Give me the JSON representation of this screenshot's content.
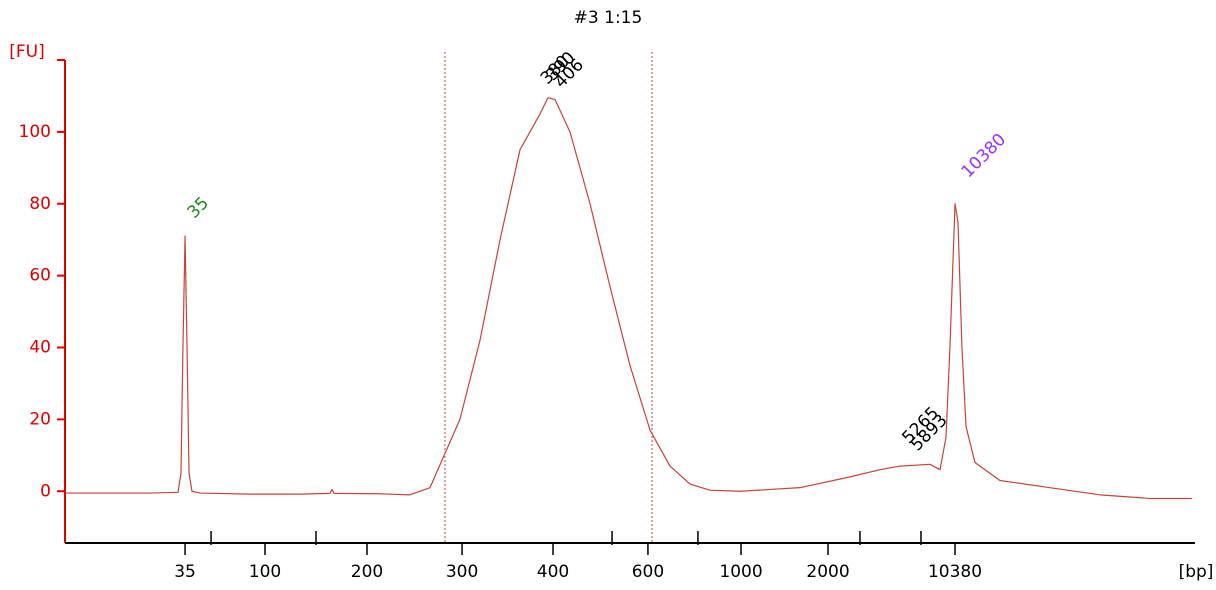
{
  "chart_data": {
    "type": "line",
    "title": "#3 1:15",
    "y_label": "[FU]",
    "x_label": "[bp]",
    "axis_color": "#dd0000",
    "ylim": [
      -14.4,
      120
    ],
    "yticks": [
      0,
      20,
      40,
      60,
      80,
      100
    ],
    "xlim": [
      40,
      120
    ],
    "xticks": [
      {
        "value": 48.5,
        "label": "35"
      },
      {
        "value": 54.16,
        "label": "100"
      },
      {
        "value": 61.38,
        "label": "200"
      },
      {
        "value": 68.11,
        "label": "300"
      },
      {
        "value": 74.55,
        "label": "400"
      },
      {
        "value": 81.27,
        "label": "600"
      },
      {
        "value": 87.86,
        "label": "1000"
      },
      {
        "value": 94.02,
        "label": "2000"
      },
      {
        "value": 103.01,
        "label": "10380"
      }
    ],
    "xminorticks": [
      50.34,
      57.77,
      78.73,
      84.81,
      96.28,
      100.6
    ],
    "regions": [
      66.9,
      81.56
    ],
    "series": [
      {
        "color": "#c8423a",
        "x": [
          40,
          42.48,
          46.02,
          48,
          48.21,
          48.35,
          48.5,
          48.64,
          48.78,
          48.99,
          49.56,
          53.1,
          56.64,
          58.76,
          58.9,
          59.04,
          62.3,
          64.42,
          65.84,
          67.96,
          69.38,
          70.8,
          72.21,
          73.63,
          74.19,
          74.69,
          75.75,
          77.17,
          78.58,
          80,
          81.42,
          82.83,
          84.25,
          85.66,
          87.79,
          92.04,
          95.58,
          97.7,
          99.12,
          101.24,
          101.95,
          102.37,
          102.65,
          103.01,
          103.22,
          103.5,
          103.79,
          104.42,
          106.19,
          109.73,
          113.27,
          116.81,
          119.79
        ],
        "values": [
          -0.5,
          -0.5,
          -0.5,
          -0.3,
          5,
          40,
          71,
          40,
          5,
          0,
          -0.5,
          -0.8,
          -0.8,
          -0.6,
          0.5,
          -0.6,
          -0.7,
          -1,
          1,
          20,
          42,
          70,
          95,
          105,
          109.5,
          109,
          100,
          80,
          57,
          35,
          17,
          7,
          2,
          0.3,
          0,
          1,
          4,
          6,
          7,
          7.5,
          6,
          15,
          40,
          80,
          75,
          40,
          18,
          8,
          3,
          1,
          -1,
          -2,
          -2
        ]
      }
    ],
    "annotations": [
      {
        "text": "35",
        "x": 48.9,
        "y": 76.7,
        "color": "#1a8a1a"
      },
      {
        "text": "380",
        "x": 73.9,
        "y": 114,
        "color": "#000000"
      },
      {
        "text": "390",
        "x": 74.3,
        "y": 115,
        "color": "#000000"
      },
      {
        "text": "406",
        "x": 74.9,
        "y": 113,
        "color": "#000000"
      },
      {
        "text": "5265",
        "x": 99.5,
        "y": 14,
        "color": "#000000"
      },
      {
        "text": "5893",
        "x": 100.1,
        "y": 12,
        "color": "#000000"
      },
      {
        "text": "10380",
        "x": 103.7,
        "y": 88,
        "color": "#9b30ff"
      }
    ]
  }
}
